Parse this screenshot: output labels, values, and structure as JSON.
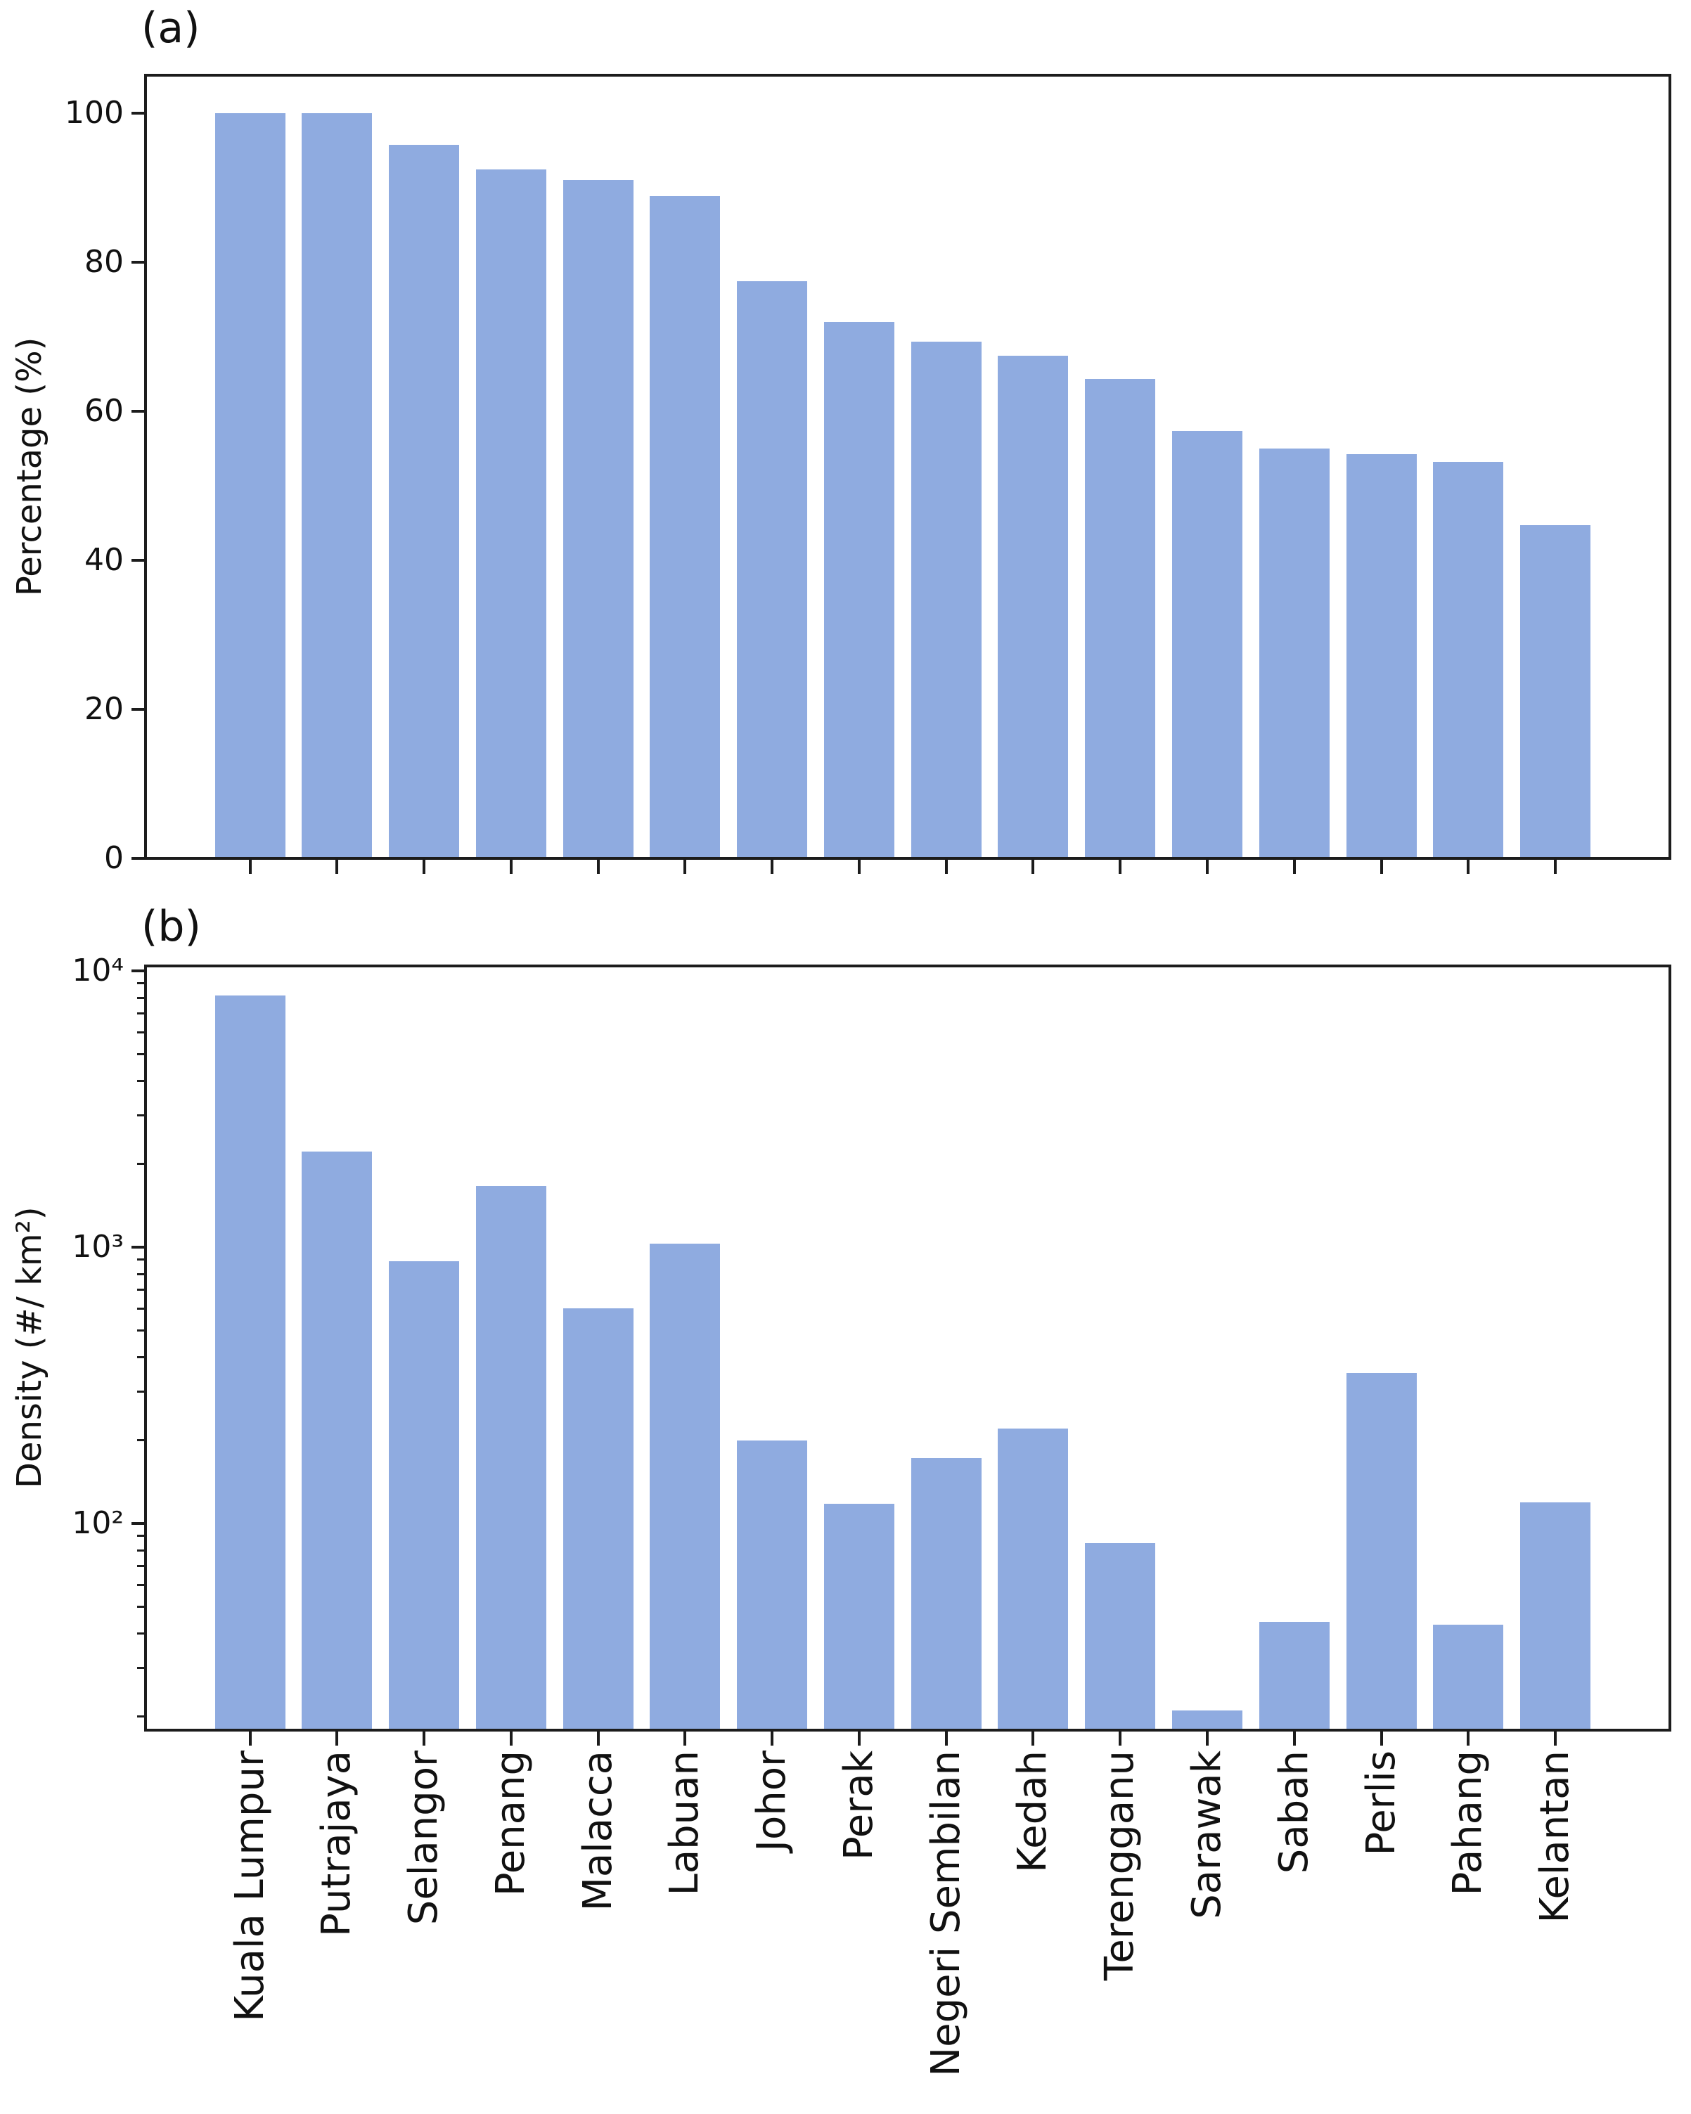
{
  "figure": {
    "background": "#ffffff",
    "axis_color": "#1c1c1c",
    "text_color": "#111111"
  },
  "chart_data": [
    {
      "panel": "a",
      "type": "bar",
      "title": "(a)",
      "ylabel": "Percentage (%)",
      "yscale": "linear",
      "categories": [
        "Kuala Lumpur",
        "Putrajaya",
        "Selangor",
        "Penang",
        "Malacca",
        "Labuan",
        "Johor",
        "Perak",
        "Negeri Sembilan",
        "Kedah",
        "Terengganu",
        "Sarawak",
        "Sabah",
        "Perlis",
        "Pahang",
        "Kelantan"
      ],
      "values": [
        100,
        100,
        95.8,
        92.5,
        91.0,
        88.9,
        77.5,
        72.0,
        69.3,
        67.5,
        64.3,
        57.4,
        55.0,
        54.2,
        53.2,
        44.7
      ],
      "ylim": [
        0,
        105
      ],
      "yticks": [
        0,
        20,
        40,
        60,
        80,
        100
      ],
      "ytick_labels": [
        "0",
        "20",
        "40",
        "60",
        "80",
        "100"
      ],
      "xtick_labels_shown": false,
      "grid": false,
      "legend": "none",
      "bar_color": "#8FABE0"
    },
    {
      "panel": "b",
      "type": "bar",
      "title": "(b)",
      "ylabel": "Density (#/ km²)",
      "yscale": "log",
      "categories": [
        "Kuala Lumpur",
        "Putrajaya",
        "Selangor",
        "Penang",
        "Malacca",
        "Labuan",
        "Johor",
        "Perak",
        "Negeri Sembilan",
        "Kedah",
        "Terengganu",
        "Sarawak",
        "Sabah",
        "Perlis",
        "Pahang",
        "Kelantan"
      ],
      "values": [
        8160,
        2215,
        890,
        1660,
        600,
        1030,
        200,
        118,
        172,
        220,
        85,
        21,
        44,
        350,
        43,
        119
      ],
      "ylim": [
        18,
        10400
      ],
      "yticks": [
        100,
        1000,
        10000
      ],
      "ytick_labels": [
        "10²",
        "10³",
        "10⁴"
      ],
      "xtick_labels_shown": true,
      "xtick_label_rotation": 90,
      "grid": false,
      "legend": "none",
      "bar_color": "#8FABE0"
    }
  ]
}
